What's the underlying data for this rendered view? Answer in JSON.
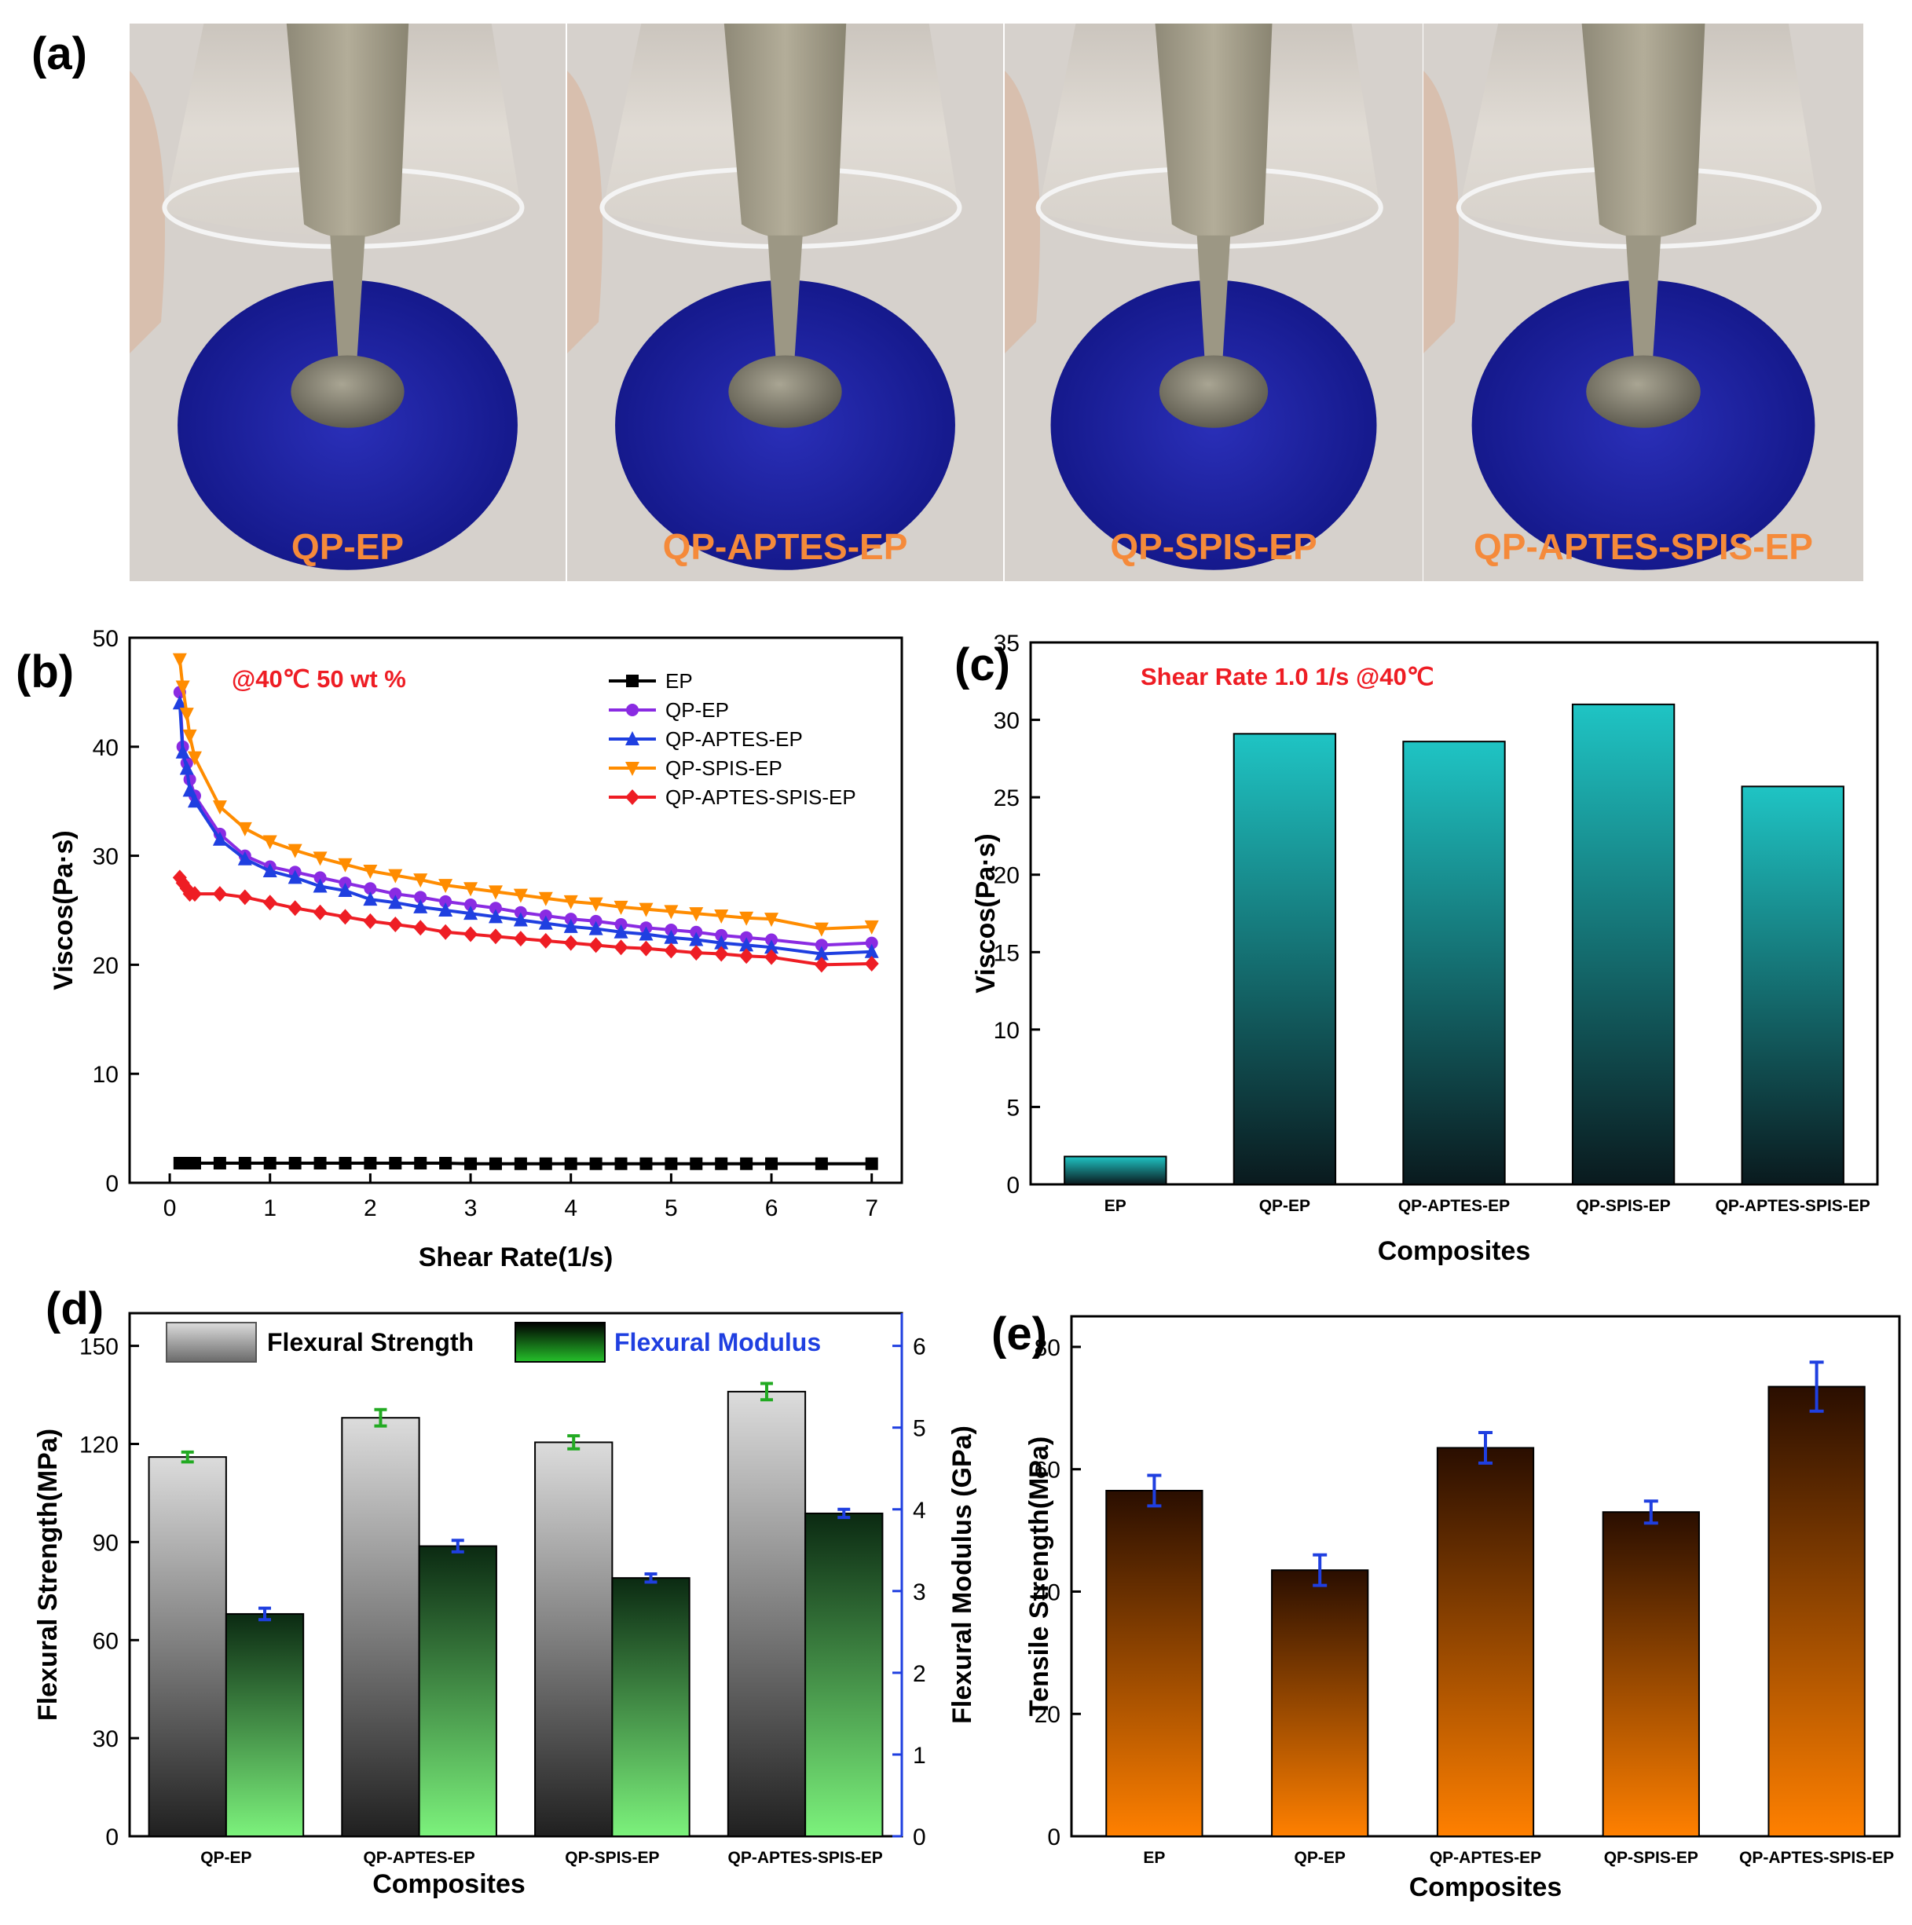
{
  "panel_a": {
    "label": "(a)",
    "photos": [
      {
        "caption": "QP-EP"
      },
      {
        "caption": "QP-APTES-EP"
      },
      {
        "caption": "QP-SPIS-EP"
      },
      {
        "caption": "QP-APTES-SPIS-EP"
      }
    ]
  },
  "chart_data": [
    {
      "id": "b",
      "panel_label": "(b)",
      "type": "line",
      "annotation": "@40℃ 50 wt %",
      "xlabel": "Shear Rate(1/s)",
      "ylabel": "Viscos(Pa·s)",
      "xlim": [
        -0.4,
        7.3
      ],
      "ylim": [
        0,
        50
      ],
      "xticks": [
        0,
        1,
        2,
        3,
        4,
        5,
        6,
        7
      ],
      "yticks": [
        0,
        10,
        20,
        30,
        40,
        50
      ],
      "legend_position": "top-right",
      "x": [
        0.1,
        0.13,
        0.17,
        0.2,
        0.25,
        0.5,
        0.75,
        1.0,
        1.25,
        1.5,
        1.75,
        2.0,
        2.25,
        2.5,
        2.75,
        3.0,
        3.25,
        3.5,
        3.75,
        4.0,
        4.25,
        4.5,
        4.75,
        5.0,
        5.25,
        5.5,
        5.75,
        6.0,
        6.5,
        7.0
      ],
      "series": [
        {
          "name": "EP",
          "color": "#000000",
          "marker": "square",
          "values": [
            1.8,
            1.8,
            1.8,
            1.8,
            1.8,
            1.8,
            1.8,
            1.8,
            1.8,
            1.8,
            1.8,
            1.8,
            1.8,
            1.8,
            1.8,
            1.75,
            1.75,
            1.75,
            1.75,
            1.75,
            1.75,
            1.75,
            1.75,
            1.75,
            1.75,
            1.75,
            1.75,
            1.75,
            1.75,
            1.75
          ]
        },
        {
          "name": "QP-EP",
          "color": "#8a2be2",
          "marker": "circle",
          "values": [
            45.0,
            40.0,
            38.5,
            37.0,
            35.5,
            32.0,
            30.0,
            29.0,
            28.5,
            28.0,
            27.5,
            27.0,
            26.5,
            26.2,
            25.8,
            25.5,
            25.2,
            24.8,
            24.5,
            24.2,
            24.0,
            23.7,
            23.4,
            23.2,
            23.0,
            22.7,
            22.5,
            22.3,
            21.8,
            22.0
          ]
        },
        {
          "name": "QP-APTES-EP",
          "color": "#1f3fe0",
          "marker": "triangle-up",
          "values": [
            44.0,
            39.5,
            38.0,
            36.0,
            35.0,
            31.5,
            29.7,
            28.6,
            28.0,
            27.2,
            26.8,
            26.0,
            25.7,
            25.3,
            25.0,
            24.7,
            24.4,
            24.1,
            23.8,
            23.5,
            23.3,
            23.0,
            22.8,
            22.5,
            22.3,
            22.0,
            21.8,
            21.6,
            21.0,
            21.2
          ]
        },
        {
          "name": "QP-SPIS-EP",
          "color": "#ff8c00",
          "marker": "triangle-down",
          "values": [
            48.0,
            45.5,
            43.0,
            41.0,
            39.0,
            34.5,
            32.5,
            31.3,
            30.5,
            29.8,
            29.2,
            28.6,
            28.2,
            27.8,
            27.3,
            27.0,
            26.7,
            26.4,
            26.1,
            25.8,
            25.6,
            25.3,
            25.1,
            24.9,
            24.7,
            24.5,
            24.3,
            24.2,
            23.3,
            23.5
          ]
        },
        {
          "name": "QP-APTES-SPIS-EP",
          "color": "#ee1d24",
          "marker": "diamond",
          "values": [
            28.0,
            27.5,
            27.0,
            26.5,
            26.5,
            26.5,
            26.2,
            25.7,
            25.2,
            24.8,
            24.4,
            24.0,
            23.7,
            23.4,
            23.0,
            22.8,
            22.6,
            22.4,
            22.2,
            22.0,
            21.8,
            21.6,
            21.5,
            21.3,
            21.1,
            21.0,
            20.8,
            20.7,
            20.0,
            20.1
          ]
        }
      ]
    },
    {
      "id": "c",
      "panel_label": "(c)",
      "type": "bar",
      "annotation": "Shear Rate 1.0 1/s @40℃",
      "xlabel": "Composites",
      "ylabel": "Viscos(Pa·s)",
      "ylim": [
        0,
        35
      ],
      "yticks": [
        0,
        5,
        10,
        15,
        20,
        25,
        30,
        35
      ],
      "categories": [
        "EP",
        "QP-EP",
        "QP-APTES-EP",
        "QP-SPIS-EP",
        "QP-APTES-SPIS-EP"
      ],
      "values": [
        1.8,
        29.1,
        28.6,
        31.0,
        25.7
      ],
      "color_top": "#1fc4c4",
      "color_bottom": "#0a1a1e"
    },
    {
      "id": "d",
      "panel_label": "(d)",
      "type": "bar",
      "xlabel": "Composites",
      "ylabel": "Flexural Strength(MPa)",
      "ylabel_right": "Flexural Modulus (GPa)",
      "ylim": [
        0,
        160
      ],
      "ylim_right": [
        0,
        6.4
      ],
      "yticks": [
        0,
        30,
        60,
        90,
        120,
        150
      ],
      "yticks_right": [
        0,
        1,
        2,
        3,
        4,
        5,
        6
      ],
      "categories": [
        "QP-EP",
        "QP-APTES-EP",
        "QP-SPIS-EP",
        "QP-APTES-SPIS-EP"
      ],
      "legend_position": "top",
      "series": [
        {
          "name": "Flexural Strength",
          "axis": "left",
          "values": [
            116,
            128,
            120.5,
            136
          ],
          "errors": [
            1.5,
            2.5,
            2.0,
            2.5
          ],
          "color_top": "#d9d9d9",
          "color_bottom": "#202020",
          "error_color": "#22aa22"
        },
        {
          "name": "Flexural Modulus",
          "axis": "right",
          "values": [
            2.72,
            3.55,
            3.16,
            3.95
          ],
          "errors": [
            0.07,
            0.07,
            0.05,
            0.05
          ],
          "color_top": "#0b2a12",
          "color_bottom": "#7cf27c",
          "error_color": "#1f3fe0"
        }
      ],
      "right_axis_color": "#1f3fe0"
    },
    {
      "id": "e",
      "panel_label": "(e)",
      "type": "bar",
      "xlabel": "Composites",
      "ylabel": "Tensile Strength(MPa)",
      "ylim": [
        0,
        85
      ],
      "yticks": [
        0,
        20,
        40,
        60,
        80
      ],
      "categories": [
        "EP",
        "QP-EP",
        "QP-APTES-EP",
        "QP-SPIS-EP",
        "QP-APTES-SPIS-EP"
      ],
      "values": [
        56.5,
        43.5,
        63.5,
        53.0,
        73.5
      ],
      "errors": [
        2.5,
        2.5,
        2.5,
        1.8,
        4.0
      ],
      "color_top": "#2a0e00",
      "color_bottom": "#ff8000",
      "error_color": "#1f3fe0"
    }
  ]
}
